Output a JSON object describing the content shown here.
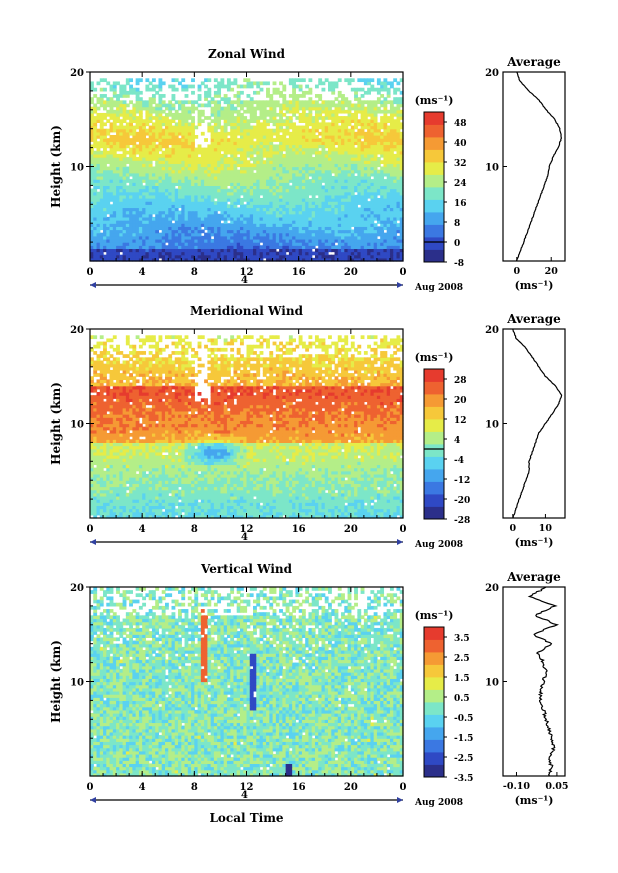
{
  "unit_label": "(ms⁻¹)",
  "date_label": "Aug 2008",
  "day_label": "4",
  "xaxis_title": "Local Time",
  "profile_title": "Average",
  "colors": {
    "scale": [
      "#2b2f8a",
      "#2f49c4",
      "#3b78e2",
      "#45a6ee",
      "#5ad2f0",
      "#7ce6c8",
      "#b4ee88",
      "#e6ec48",
      "#f6c83a",
      "#f59a34",
      "#ee6230",
      "#e63b2e"
    ],
    "background": "#ffffff",
    "contour": "#000000"
  },
  "chart_data": [
    {
      "type": "heatmap",
      "title": "Zonal Wind",
      "ylabel": "Height (km)",
      "x_ticks": [
        "0",
        "4",
        "8",
        "12",
        "16",
        "20",
        "0"
      ],
      "y_ticks": [
        "10",
        "20"
      ],
      "xlim": [
        0,
        24
      ],
      "ylim": [
        0,
        20
      ],
      "colorbar_ticks": [
        "48",
        "40",
        "32",
        "24",
        "16",
        "8",
        "0",
        "-8"
      ],
      "colorbar_range": [
        -8,
        52
      ],
      "zero_line_value": 0,
      "profile": {
        "x_ticks": [
          "0",
          "20"
        ],
        "xlim": [
          -8,
          28
        ],
        "height_km": [
          0,
          1,
          2,
          3,
          4,
          5,
          6,
          7,
          8,
          9,
          10,
          11,
          12,
          13,
          14,
          15,
          16,
          17,
          18,
          19,
          20
        ],
        "values": [
          0,
          2,
          4,
          6,
          8,
          10,
          12,
          14,
          16,
          18,
          19,
          21,
          24,
          26,
          25,
          22,
          17,
          13,
          7,
          2,
          0
        ]
      }
    },
    {
      "type": "heatmap",
      "title": "Meridional Wind",
      "ylabel": "Height (km)",
      "x_ticks": [
        "0",
        "4",
        "8",
        "12",
        "16",
        "20",
        "0"
      ],
      "y_ticks": [
        "10",
        "20"
      ],
      "xlim": [
        0,
        24
      ],
      "ylim": [
        0,
        20
      ],
      "colorbar_ticks": [
        "28",
        "20",
        "12",
        "4",
        "-4",
        "-12",
        "-20",
        "-28"
      ],
      "colorbar_range": [
        -28,
        32
      ],
      "zero_line_value": 0,
      "profile": {
        "x_ticks": [
          "0",
          "10"
        ],
        "xlim": [
          -3,
          16
        ],
        "height_km": [
          0,
          1,
          2,
          3,
          4,
          5,
          6,
          7,
          8,
          9,
          10,
          11,
          12,
          13,
          14,
          15,
          16,
          17,
          18,
          19,
          20
        ],
        "values": [
          0,
          1,
          2,
          3,
          4,
          5,
          5,
          6,
          7,
          8,
          10,
          12,
          14,
          15,
          13,
          10,
          8,
          6,
          4,
          1,
          0
        ]
      }
    },
    {
      "type": "heatmap",
      "title": "Vertical Wind",
      "ylabel": "Height (km)",
      "x_ticks": [
        "0",
        "4",
        "8",
        "12",
        "16",
        "20",
        "0"
      ],
      "y_ticks": [
        "10",
        "20"
      ],
      "xlim": [
        0,
        24
      ],
      "ylim": [
        0,
        20
      ],
      "colorbar_ticks": [
        "3.5",
        "2.5",
        "1.5",
        "0.5",
        "-0.5",
        "-1.5",
        "-2.5",
        "-3.5"
      ],
      "colorbar_range": [
        -3.5,
        4
      ],
      "profile": {
        "x_ticks": [
          "-0.10",
          "0.05"
        ],
        "xlim": [
          -0.15,
          0.08
        ],
        "height_km": [
          0,
          1,
          2,
          3,
          4,
          5,
          6,
          7,
          8,
          9,
          10,
          11,
          12,
          13,
          14,
          15,
          16,
          17,
          18,
          19,
          20
        ],
        "values": [
          0.02,
          0.03,
          0.02,
          0.04,
          0.03,
          0.02,
          0.01,
          0.0,
          -0.01,
          -0.01,
          0.0,
          0.01,
          0.0,
          -0.02,
          0.03,
          -0.04,
          0.05,
          -0.03,
          0.04,
          -0.05,
          0.01
        ]
      }
    }
  ]
}
